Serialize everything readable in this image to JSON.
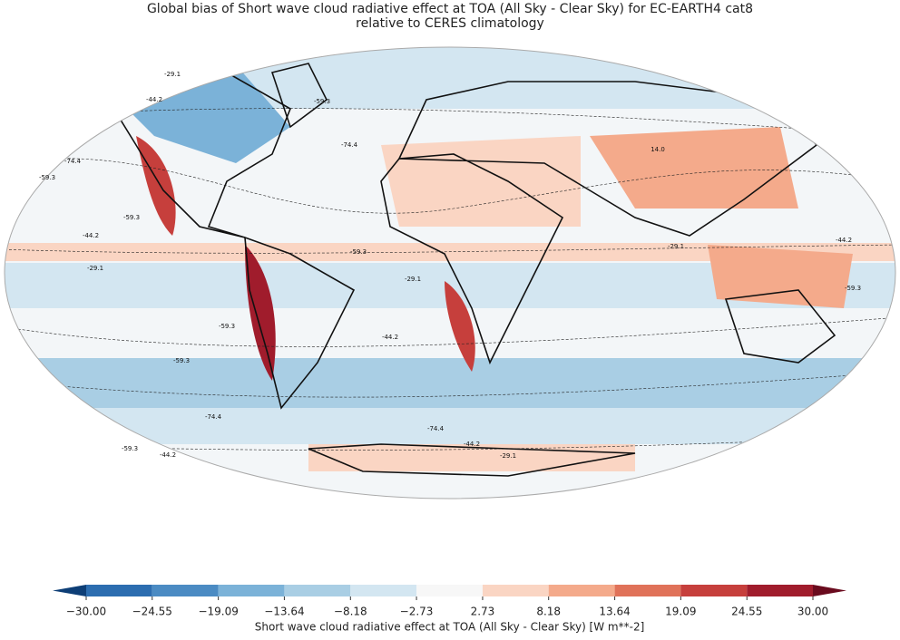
{
  "title": [
    "Global bias of Short wave cloud radiative effect at TOA (All Sky - Clear Sky) for EC-EARTH4 cat8",
    "relative to CERES climatology"
  ],
  "colorbar": {
    "ticks": [
      {
        "value": -30,
        "label": "−30.00"
      },
      {
        "value": -24.55,
        "label": "−24.55"
      },
      {
        "value": -19.09,
        "label": "−19.09"
      },
      {
        "value": -13.64,
        "label": "−13.64"
      },
      {
        "value": -8.18,
        "label": "−8.18"
      },
      {
        "value": -2.73,
        "label": "−2.73"
      },
      {
        "value": 2.73,
        "label": "2.73"
      },
      {
        "value": 8.18,
        "label": "8.18"
      },
      {
        "value": 13.64,
        "label": "13.64"
      },
      {
        "value": 19.09,
        "label": "19.09"
      },
      {
        "value": 24.55,
        "label": "24.55"
      },
      {
        "value": 30,
        "label": "30.00"
      }
    ],
    "colors": [
      "#2c6db0",
      "#4b8bc3",
      "#7bb2d8",
      "#a9cee4",
      "#d3e6f1",
      "#f7f7f7",
      "#fad5c3",
      "#f4aa8b",
      "#e07259",
      "#c63f3c",
      "#a01c2c"
    ],
    "under_color": "#0d3e76",
    "over_color": "#6a0b1e",
    "label": "Short wave cloud radiative effect at TOA (All Sky - Clear Sky) [W m**-2]"
  },
  "contour_labels": [
    "-29.1",
    "-44.2",
    "-59.3",
    "-74.4",
    "-59.3",
    "-44.2",
    "-29.1",
    "-59.3",
    "-59.3",
    "-29.1",
    "-44.2",
    "-59.3",
    "-74.4",
    "-74.4",
    "-59.3",
    "-44.2",
    "-29.1",
    "-74.4",
    "-44.2",
    "-59.3",
    "14.0",
    "-29.1",
    "-44.2",
    "-59.3"
  ]
}
